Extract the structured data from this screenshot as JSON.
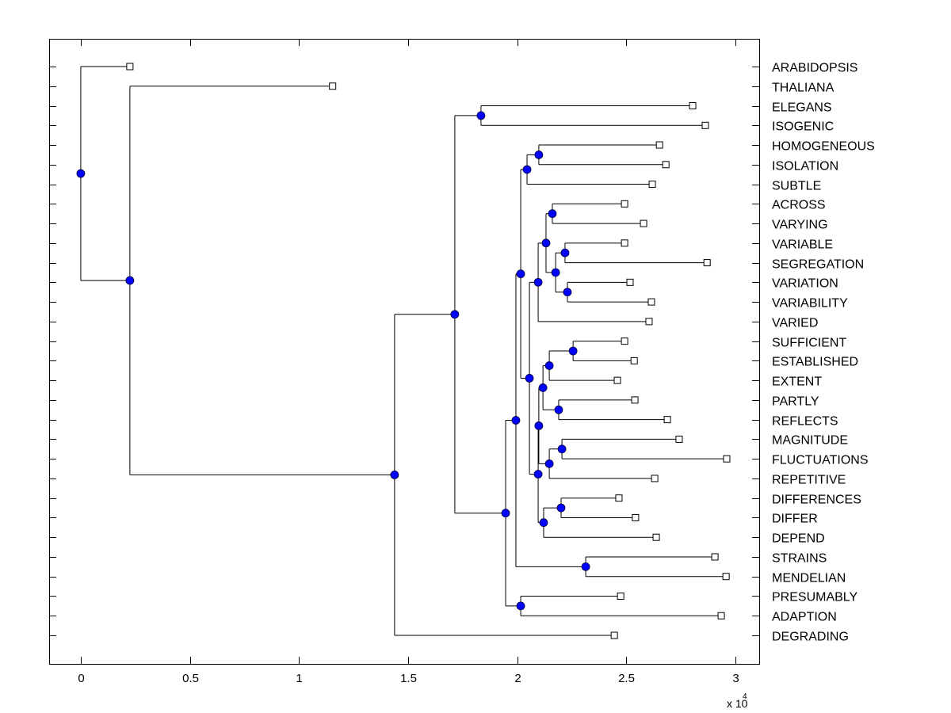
{
  "chart_data": {
    "type": "dendrogram",
    "title": "",
    "xlabel": "",
    "ylabel": "",
    "x_multiplier_label": "x 10",
    "x_multiplier_exponent": "4",
    "xlim": [
      -0.145,
      3.109
    ],
    "x_ticks": [
      0,
      0.5,
      1,
      1.5,
      2,
      2.5,
      3
    ],
    "x_tick_labels": [
      "0",
      "0.5",
      "1",
      "1.5",
      "2",
      "2.5",
      "3"
    ],
    "grid": false,
    "colors": {
      "node": "#0000ff",
      "leaf": "#ffffff",
      "line": "#000000"
    },
    "leaves": [
      {
        "label": "ARABIDOPSIS",
        "value": 0.225
      },
      {
        "label": "THALIANA",
        "value": 1.154
      },
      {
        "label": "ELEGANS",
        "value": 2.804
      },
      {
        "label": "ISOGENIC",
        "value": 2.862
      },
      {
        "label": "HOMOGENEOUS",
        "value": 2.652
      },
      {
        "label": "ISOLATION",
        "value": 2.681
      },
      {
        "label": "SUBTLE",
        "value": 2.619
      },
      {
        "label": "ACROSS",
        "value": 2.492
      },
      {
        "label": "VARYING",
        "value": 2.579
      },
      {
        "label": "VARIABLE",
        "value": 2.492
      },
      {
        "label": "SEGREGATION",
        "value": 2.87
      },
      {
        "label": "VARIATION",
        "value": 2.517
      },
      {
        "label": "VARIABILITY",
        "value": 2.615
      },
      {
        "label": "VARIED",
        "value": 2.604
      },
      {
        "label": "SUFFICIENT",
        "value": 2.492
      },
      {
        "label": "ESTABLISHED",
        "value": 2.536
      },
      {
        "label": "EXTENT",
        "value": 2.459
      },
      {
        "label": "PARTLY",
        "value": 2.539
      },
      {
        "label": "REFLECTS",
        "value": 2.688
      },
      {
        "label": "MAGNITUDE",
        "value": 2.742
      },
      {
        "label": "FLUCTUATIONS",
        "value": 2.96
      },
      {
        "label": "REPETITIVE",
        "value": 2.63
      },
      {
        "label": "DIFFERENCES",
        "value": 2.466
      },
      {
        "label": "DIFFER",
        "value": 2.542
      },
      {
        "label": "DEPEND",
        "value": 2.637
      },
      {
        "label": "STRAINS",
        "value": 2.906
      },
      {
        "label": "MENDELIAN",
        "value": 2.957
      },
      {
        "label": "PRESUMABLY",
        "value": 2.474
      },
      {
        "label": "ADAPTION",
        "value": 2.935
      },
      {
        "label": "DEGRADING",
        "value": 2.445
      }
    ],
    "tree": {
      "value": 0.0,
      "children": [
        {
          "leaf": 0
        },
        {
          "value": 0.225,
          "children": [
            {
              "leaf": 1
            },
            {
              "value": 1.438,
              "children": [
                {
                  "value": 1.714,
                  "children": [
                    {
                      "value": 1.834,
                      "children": [
                        {
                          "leaf": 2
                        },
                        {
                          "leaf": 3
                        }
                      ]
                    },
                    {
                      "value": 1.947,
                      "children": [
                        {
                          "value": 1.994,
                          "children": [
                            {
                              "value": 2.016,
                              "children": [
                                {
                                  "value": 2.045,
                                  "children": [
                                    {
                                      "value": 2.099,
                                      "children": [
                                        {
                                          "leaf": 4
                                        },
                                        {
                                          "leaf": 5
                                        }
                                      ]
                                    },
                                    {
                                      "leaf": 6
                                    }
                                  ]
                                },
                                {
                                  "value": 2.056,
                                  "children": [
                                    {
                                      "value": 2.096,
                                      "children": [
                                        {
                                          "value": 2.132,
                                          "children": [
                                            {
                                              "value": 2.161,
                                              "children": [
                                                {
                                                  "leaf": 7
                                                },
                                                {
                                                  "leaf": 8
                                                }
                                              ]
                                            },
                                            {
                                              "value": 2.176,
                                              "children": [
                                                {
                                                  "value": 2.219,
                                                  "children": [
                                                    {
                                                      "leaf": 9
                                                    },
                                                    {
                                                      "leaf": 10
                                                    }
                                                  ]
                                                },
                                                {
                                                  "value": 2.23,
                                                  "children": [
                                                    {
                                                      "leaf": 11
                                                    },
                                                    {
                                                      "leaf": 12
                                                    }
                                                  ]
                                                }
                                              ]
                                            }
                                          ]
                                        },
                                        {
                                          "leaf": 13
                                        }
                                      ]
                                    },
                                    {
                                      "value": 2.096,
                                      "children": [
                                        {
                                          "value": 2.099,
                                          "children": [
                                            {
                                              "value": 2.118,
                                              "children": [
                                                {
                                                  "value": 2.147,
                                                  "children": [
                                                    {
                                                      "value": 2.256,
                                                      "children": [
                                                        {
                                                          "leaf": 14
                                                        },
                                                        {
                                                          "leaf": 15
                                                        }
                                                      ]
                                                    },
                                                    {
                                                      "leaf": 16
                                                    }
                                                  ]
                                                },
                                                {
                                                  "value": 2.19,
                                                  "children": [
                                                    {
                                                      "leaf": 17
                                                    },
                                                    {
                                                      "leaf": 18
                                                    }
                                                  ]
                                                }
                                              ]
                                            },
                                            {
                                              "value": 2.147,
                                              "children": [
                                                {
                                                  "value": 2.205,
                                                  "children": [
                                                    {
                                                      "leaf": 19
                                                    },
                                                    {
                                                      "leaf": 20
                                                    }
                                                  ]
                                                },
                                                {
                                                  "leaf": 21
                                                }
                                              ]
                                            }
                                          ]
                                        },
                                        {
                                          "value": 2.121,
                                          "children": [
                                            {
                                              "value": 2.201,
                                              "children": [
                                                {
                                                  "leaf": 22
                                                },
                                                {
                                                  "leaf": 23
                                                }
                                              ]
                                            },
                                            {
                                              "leaf": 24
                                            }
                                          ]
                                        }
                                      ]
                                    }
                                  ]
                                }
                              ]
                            },
                            {
                              "value": 2.314,
                              "children": [
                                {
                                  "leaf": 25
                                },
                                {
                                  "leaf": 26
                                }
                              ]
                            }
                          ]
                        },
                        {
                          "value": 2.016,
                          "children": [
                            {
                              "leaf": 27
                            },
                            {
                              "leaf": 28
                            }
                          ]
                        }
                      ]
                    }
                  ]
                },
                {
                  "leaf": 29
                }
              ]
            }
          ]
        }
      ]
    }
  }
}
